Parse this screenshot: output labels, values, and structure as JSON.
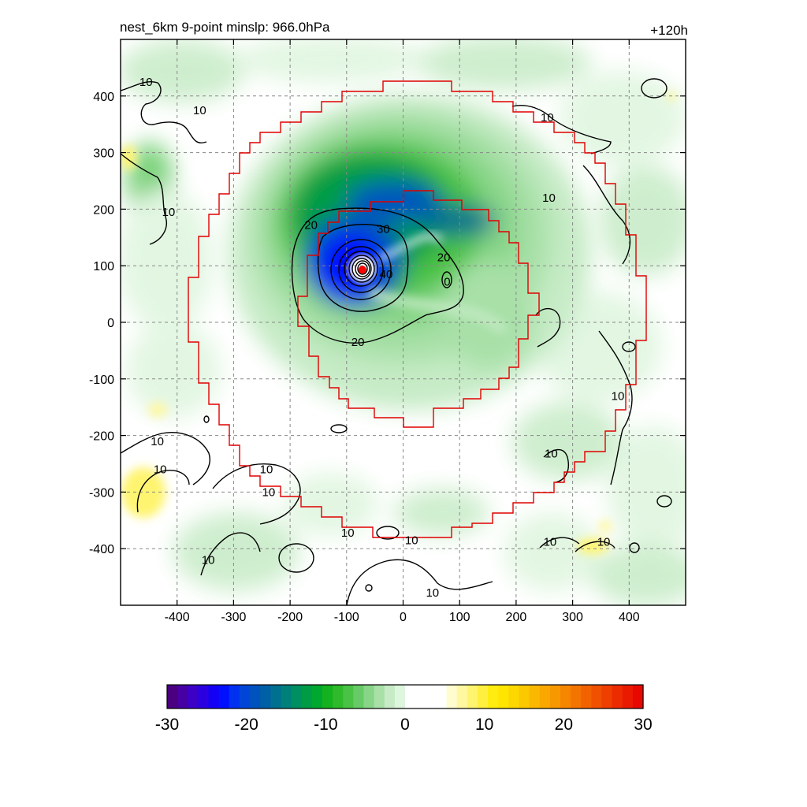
{
  "title": {
    "left": "nest_6km  9-point minslp: 966.0hPa",
    "right": "+120h"
  },
  "colors": {
    "inner_box": "#e00000",
    "storm_center": "#ff0000",
    "contour": "#000000"
  },
  "chart_data": {
    "type": "heatmap",
    "xlim": [
      -500,
      500
    ],
    "ylim": [
      -500,
      500
    ],
    "x_ticks": [
      "-400",
      "-300",
      "-200",
      "-100",
      "0",
      "100",
      "200",
      "300",
      "400"
    ],
    "y_ticks": [
      "400",
      "300",
      "200",
      "100",
      "0",
      "-100",
      "-200",
      "-300",
      "-400"
    ],
    "grid": true,
    "storm_center": {
      "x": -72,
      "y": 93
    },
    "contour_labels": [
      {
        "text": "10",
        "x": -455,
        "y": 425
      },
      {
        "text": "10",
        "x": -360,
        "y": 375
      },
      {
        "text": "10",
        "x": -415,
        "y": 195
      },
      {
        "text": "10",
        "x": 258,
        "y": 220
      },
      {
        "text": "10",
        "x": 255,
        "y": 362
      },
      {
        "text": "10",
        "x": 380,
        "y": -130
      },
      {
        "text": "10",
        "x": 262,
        "y": -232
      },
      {
        "text": "10",
        "x": -435,
        "y": -210
      },
      {
        "text": "10",
        "x": -430,
        "y": -260
      },
      {
        "text": "10",
        "x": -242,
        "y": -260
      },
      {
        "text": "10",
        "x": -238,
        "y": -300
      },
      {
        "text": "10",
        "x": -98,
        "y": -372
      },
      {
        "text": "10",
        "x": 15,
        "y": -385
      },
      {
        "text": "10",
        "x": 260,
        "y": -388
      },
      {
        "text": "10",
        "x": 355,
        "y": -388
      },
      {
        "text": "10",
        "x": -345,
        "y": -420
      },
      {
        "text": "10",
        "x": 52,
        "y": -478
      },
      {
        "text": "20",
        "x": -163,
        "y": 172
      },
      {
        "text": "20",
        "x": 72,
        "y": 115
      },
      {
        "text": "20",
        "x": -80,
        "y": -35
      },
      {
        "text": "30",
        "x": -35,
        "y": 165
      },
      {
        "text": "40",
        "x": -30,
        "y": 85
      },
      {
        "text": "0",
        "x": 78,
        "y": 72
      }
    ],
    "colorbar": {
      "min": -30,
      "max": 30,
      "tick_labels": [
        "-30",
        "-20",
        "-10",
        "0",
        "10",
        "20",
        "30"
      ],
      "colors": [
        "#4b0082",
        "#4600a3",
        "#3c00c6",
        "#2a00e0",
        "#1400f5",
        "#0010ff",
        "#0030f0",
        "#0045d8",
        "#0052bf",
        "#0060a6",
        "#007090",
        "#00807a",
        "#008f60",
        "#009c45",
        "#00a830",
        "#14b21e",
        "#2eba2a",
        "#4ac245",
        "#66cb66",
        "#88d588",
        "#a8e0a8",
        "#c6ebc6",
        "#def5de",
        "#ffffff",
        "#ffffff",
        "#ffffff",
        "#ffffff",
        "#fffcd0",
        "#fff8a0",
        "#fff470",
        "#fff040",
        "#ffec10",
        "#fee600",
        "#fdd800",
        "#fcc800",
        "#fbb800",
        "#faa800",
        "#f89800",
        "#f68600",
        "#f47400",
        "#f26200",
        "#f05000",
        "#ee3e00",
        "#ec2c00",
        "#ea1a00",
        "#e80800"
      ]
    }
  }
}
